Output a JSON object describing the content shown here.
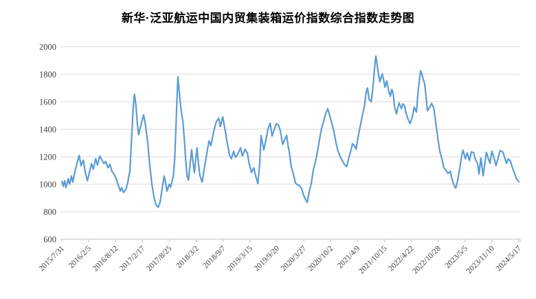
{
  "title": "新华·泛亚航运中国内贸集装箱运价指数综合指数走势图",
  "chart_data": {
    "type": "line",
    "title": "新华·泛亚航运中国内贸集装箱运价指数综合指数走势图",
    "xlabel": "",
    "ylabel": "",
    "ylim": [
      600,
      2000
    ],
    "y_ticks": [
      600,
      800,
      1000,
      1200,
      1400,
      1600,
      1800,
      2000
    ],
    "x_tick_labels": [
      "2015/7/31",
      "2016/2/5",
      "2016/8/12",
      "2017/2/17",
      "2017/8/25",
      "2018/3/2",
      "2018/9/7",
      "2019/3/15",
      "2019/9/20",
      "2020/3/27",
      "2020/10/2",
      "2021/4/9",
      "2021/10/15",
      "2022/4/22",
      "2022/10/28",
      "2023/5/5",
      "2023/11/10",
      "2024/5/17"
    ],
    "grid": true,
    "legend": "none",
    "line_color": "#5B9BD5",
    "grid_color": "#D9D9D9",
    "axis_color": "#BFBFBF",
    "label_color": "#404040",
    "title_color": "#000000",
    "series": [
      {
        "color": "#5B9BD5",
        "points": [
          [
            0,
            1020
          ],
          [
            0.003,
            985
          ],
          [
            0.006,
            1025
          ],
          [
            0.009,
            975
          ],
          [
            0.014,
            1040
          ],
          [
            0.017,
            1000
          ],
          [
            0.021,
            1060
          ],
          [
            0.024,
            1015
          ],
          [
            0.029,
            1100
          ],
          [
            0.033,
            1150
          ],
          [
            0.038,
            1210
          ],
          [
            0.042,
            1135
          ],
          [
            0.047,
            1175
          ],
          [
            0.051,
            1090
          ],
          [
            0.056,
            1025
          ],
          [
            0.06,
            1080
          ],
          [
            0.065,
            1150
          ],
          [
            0.069,
            1110
          ],
          [
            0.074,
            1185
          ],
          [
            0.078,
            1140
          ],
          [
            0.083,
            1205
          ],
          [
            0.087,
            1180
          ],
          [
            0.092,
            1150
          ],
          [
            0.096,
            1165
          ],
          [
            0.101,
            1120
          ],
          [
            0.105,
            1145
          ],
          [
            0.11,
            1090
          ],
          [
            0.114,
            1075
          ],
          [
            0.119,
            1040
          ],
          [
            0.123,
            1000
          ],
          [
            0.128,
            950
          ],
          [
            0.131,
            975
          ],
          [
            0.135,
            940
          ],
          [
            0.14,
            960
          ],
          [
            0.144,
            1010
          ],
          [
            0.149,
            1100
          ],
          [
            0.153,
            1350
          ],
          [
            0.156,
            1550
          ],
          [
            0.159,
            1655
          ],
          [
            0.162,
            1580
          ],
          [
            0.165,
            1450
          ],
          [
            0.168,
            1360
          ],
          [
            0.173,
            1430
          ],
          [
            0.179,
            1505
          ],
          [
            0.183,
            1430
          ],
          [
            0.188,
            1300
          ],
          [
            0.192,
            1150
          ],
          [
            0.197,
            1000
          ],
          [
            0.202,
            900
          ],
          [
            0.206,
            850
          ],
          [
            0.211,
            832
          ],
          [
            0.215,
            870
          ],
          [
            0.22,
            980
          ],
          [
            0.224,
            1060
          ],
          [
            0.227,
            1010
          ],
          [
            0.23,
            950
          ],
          [
            0.235,
            1000
          ],
          [
            0.238,
            980
          ],
          [
            0.241,
            1020
          ],
          [
            0.244,
            1060
          ],
          [
            0.247,
            1190
          ],
          [
            0.25,
            1450
          ],
          [
            0.253,
            1700
          ],
          [
            0.254,
            1782
          ],
          [
            0.259,
            1600
          ],
          [
            0.262,
            1515
          ],
          [
            0.265,
            1455
          ],
          [
            0.268,
            1330
          ],
          [
            0.271,
            1180
          ],
          [
            0.274,
            1060
          ],
          [
            0.277,
            1030
          ],
          [
            0.281,
            1160
          ],
          [
            0.284,
            1250
          ],
          [
            0.287,
            1160
          ],
          [
            0.29,
            1085
          ],
          [
            0.293,
            1180
          ],
          [
            0.296,
            1265
          ],
          [
            0.299,
            1150
          ],
          [
            0.302,
            1065
          ],
          [
            0.307,
            1015
          ],
          [
            0.311,
            1100
          ],
          [
            0.316,
            1200
          ],
          [
            0.322,
            1315
          ],
          [
            0.326,
            1280
          ],
          [
            0.332,
            1380
          ],
          [
            0.338,
            1455
          ],
          [
            0.343,
            1480
          ],
          [
            0.347,
            1420
          ],
          [
            0.352,
            1490
          ],
          [
            0.358,
            1380
          ],
          [
            0.362,
            1300
          ],
          [
            0.367,
            1210
          ],
          [
            0.371,
            1185
          ],
          [
            0.376,
            1240
          ],
          [
            0.38,
            1195
          ],
          [
            0.386,
            1225
          ],
          [
            0.391,
            1265
          ],
          [
            0.395,
            1205
          ],
          [
            0.401,
            1255
          ],
          [
            0.406,
            1225
          ],
          [
            0.41,
            1150
          ],
          [
            0.415,
            1085
          ],
          [
            0.42,
            1120
          ],
          [
            0.424,
            1060
          ],
          [
            0.429,
            1005
          ],
          [
            0.433,
            1150
          ],
          [
            0.436,
            1355
          ],
          [
            0.439,
            1300
          ],
          [
            0.442,
            1250
          ],
          [
            0.447,
            1330
          ],
          [
            0.451,
            1400
          ],
          [
            0.456,
            1445
          ],
          [
            0.46,
            1350
          ],
          [
            0.465,
            1400
          ],
          [
            0.469,
            1440
          ],
          [
            0.474,
            1430
          ],
          [
            0.478,
            1390
          ],
          [
            0.483,
            1290
          ],
          [
            0.487,
            1320
          ],
          [
            0.492,
            1355
          ],
          [
            0.495,
            1280
          ],
          [
            0.498,
            1230
          ],
          [
            0.502,
            1130
          ],
          [
            0.507,
            1070
          ],
          [
            0.511,
            1010
          ],
          [
            0.516,
            995
          ],
          [
            0.52,
            990
          ],
          [
            0.525,
            965
          ],
          [
            0.529,
            920
          ],
          [
            0.534,
            885
          ],
          [
            0.537,
            868
          ],
          [
            0.541,
            940
          ],
          [
            0.546,
            1010
          ],
          [
            0.55,
            1100
          ],
          [
            0.555,
            1165
          ],
          [
            0.559,
            1230
          ],
          [
            0.564,
            1330
          ],
          [
            0.568,
            1400
          ],
          [
            0.573,
            1460
          ],
          [
            0.577,
            1510
          ],
          [
            0.582,
            1550
          ],
          [
            0.586,
            1500
          ],
          [
            0.591,
            1440
          ],
          [
            0.595,
            1390
          ],
          [
            0.6,
            1300
          ],
          [
            0.604,
            1245
          ],
          [
            0.609,
            1200
          ],
          [
            0.614,
            1170
          ],
          [
            0.618,
            1145
          ],
          [
            0.623,
            1128
          ],
          [
            0.627,
            1180
          ],
          [
            0.632,
            1240
          ],
          [
            0.636,
            1295
          ],
          [
            0.641,
            1275
          ],
          [
            0.644,
            1255
          ],
          [
            0.648,
            1340
          ],
          [
            0.653,
            1420
          ],
          [
            0.657,
            1490
          ],
          [
            0.662,
            1565
          ],
          [
            0.666,
            1670
          ],
          [
            0.669,
            1700
          ],
          [
            0.672,
            1620
          ],
          [
            0.677,
            1600
          ],
          [
            0.68,
            1680
          ],
          [
            0.683,
            1790
          ],
          [
            0.686,
            1905
          ],
          [
            0.687,
            1932
          ],
          [
            0.69,
            1870
          ],
          [
            0.693,
            1800
          ],
          [
            0.696,
            1745
          ],
          [
            0.701,
            1802
          ],
          [
            0.704,
            1760
          ],
          [
            0.707,
            1705
          ],
          [
            0.711,
            1752
          ],
          [
            0.716,
            1670
          ],
          [
            0.719,
            1640
          ],
          [
            0.722,
            1690
          ],
          [
            0.725,
            1660
          ],
          [
            0.728,
            1565
          ],
          [
            0.732,
            1512
          ],
          [
            0.735,
            1555
          ],
          [
            0.738,
            1592
          ],
          [
            0.743,
            1550
          ],
          [
            0.746,
            1585
          ],
          [
            0.75,
            1570
          ],
          [
            0.753,
            1520
          ],
          [
            0.758,
            1470
          ],
          [
            0.762,
            1440
          ],
          [
            0.767,
            1490
          ],
          [
            0.771,
            1560
          ],
          [
            0.776,
            1525
          ],
          [
            0.78,
            1690
          ],
          [
            0.785,
            1825
          ],
          [
            0.788,
            1800
          ],
          [
            0.791,
            1760
          ],
          [
            0.794,
            1730
          ],
          [
            0.797,
            1640
          ],
          [
            0.8,
            1535
          ],
          [
            0.805,
            1560
          ],
          [
            0.809,
            1588
          ],
          [
            0.814,
            1555
          ],
          [
            0.818,
            1450
          ],
          [
            0.823,
            1330
          ],
          [
            0.827,
            1240
          ],
          [
            0.832,
            1180
          ],
          [
            0.836,
            1120
          ],
          [
            0.841,
            1098
          ],
          [
            0.845,
            1078
          ],
          [
            0.85,
            1095
          ],
          [
            0.854,
            1035
          ],
          [
            0.859,
            985
          ],
          [
            0.862,
            972
          ],
          [
            0.866,
            1025
          ],
          [
            0.871,
            1120
          ],
          [
            0.875,
            1210
          ],
          [
            0.878,
            1248
          ],
          [
            0.883,
            1185
          ],
          [
            0.887,
            1228
          ],
          [
            0.892,
            1172
          ],
          [
            0.896,
            1235
          ],
          [
            0.901,
            1230
          ],
          [
            0.905,
            1180
          ],
          [
            0.91,
            1150
          ],
          [
            0.913,
            1075
          ],
          [
            0.917,
            1190
          ],
          [
            0.922,
            1062
          ],
          [
            0.926,
            1160
          ],
          [
            0.929,
            1232
          ],
          [
            0.934,
            1180
          ],
          [
            0.937,
            1152
          ],
          [
            0.941,
            1240
          ],
          [
            0.946,
            1190
          ],
          [
            0.95,
            1135
          ],
          [
            0.955,
            1195
          ],
          [
            0.959,
            1245
          ],
          [
            0.964,
            1238
          ],
          [
            0.968,
            1205
          ],
          [
            0.973,
            1152
          ],
          [
            0.977,
            1185
          ],
          [
            0.982,
            1165
          ],
          [
            0.986,
            1120
          ],
          [
            0.991,
            1075
          ],
          [
            0.995,
            1040
          ],
          [
            1,
            1018
          ]
        ]
      }
    ]
  }
}
